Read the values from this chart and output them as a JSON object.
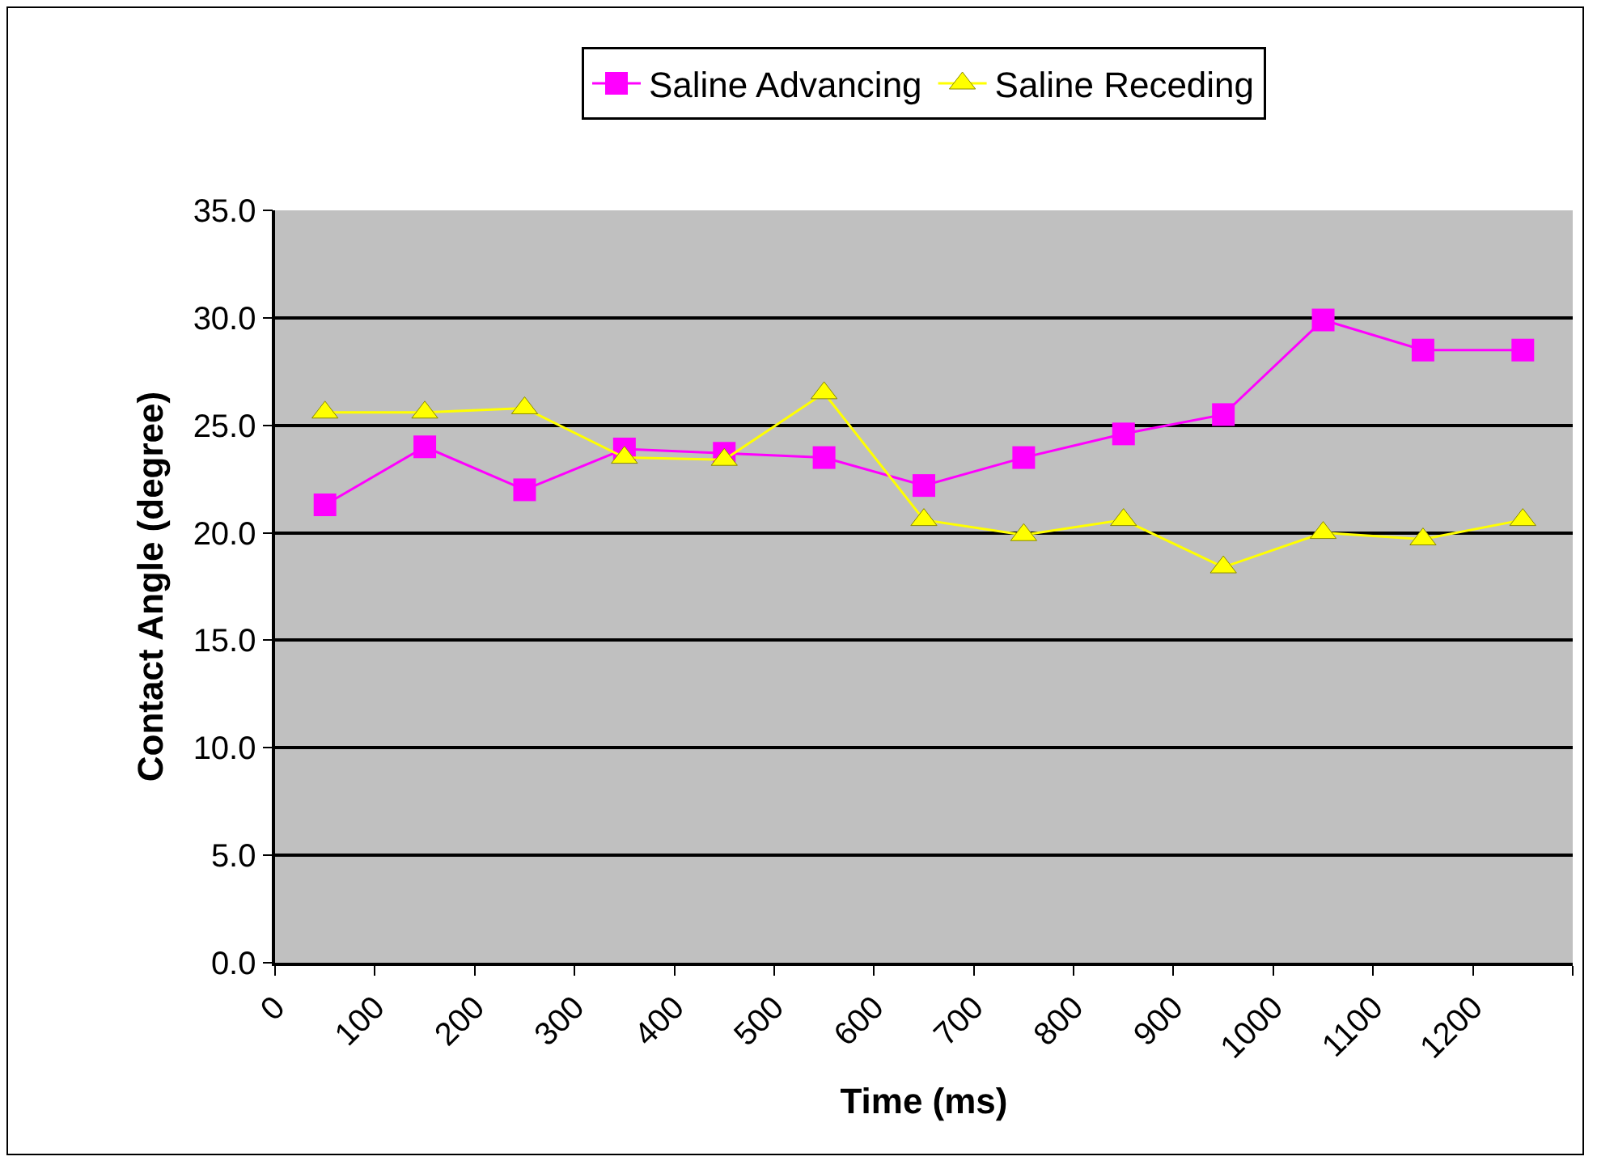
{
  "chart_data": {
    "type": "line",
    "xlabel": "Time (ms)",
    "ylabel": "Contact Angle (degree)",
    "x": [
      50,
      150,
      250,
      350,
      450,
      550,
      650,
      750,
      850,
      950,
      1050,
      1150,
      1250
    ],
    "xlim": [
      0,
      1300
    ],
    "xticks": [
      0,
      100,
      200,
      300,
      400,
      500,
      600,
      700,
      800,
      900,
      1000,
      1100,
      1200,
      {
        "value": 1300,
        "label": null
      }
    ],
    "ylim": [
      0,
      35
    ],
    "yticks": [
      {
        "value": 0,
        "label": "0.0"
      },
      {
        "value": 5,
        "label": "5.0"
      },
      {
        "value": 10,
        "label": "10.0"
      },
      {
        "value": 15,
        "label": "15.0"
      },
      {
        "value": 20,
        "label": "20.0"
      },
      {
        "value": 25,
        "label": "25.0"
      },
      {
        "value": 30,
        "label": "30.0"
      },
      {
        "value": 35,
        "label": "35.0"
      }
    ],
    "grid": "y",
    "legend": "top",
    "line_style": "solid",
    "series": [
      {
        "name": "Saline Advancing",
        "color": "#ff00ff",
        "marker": "square",
        "values": [
          21.3,
          24.0,
          22.0,
          23.9,
          23.7,
          23.5,
          22.2,
          23.5,
          24.6,
          25.5,
          29.9,
          28.5,
          28.5
        ]
      },
      {
        "name": "Saline Receding",
        "color": "#ffff00",
        "marker": "triangle",
        "values": [
          25.6,
          25.6,
          25.8,
          23.5,
          23.4,
          26.5,
          20.6,
          19.9,
          20.6,
          18.4,
          20.0,
          19.7,
          20.6
        ]
      }
    ]
  }
}
